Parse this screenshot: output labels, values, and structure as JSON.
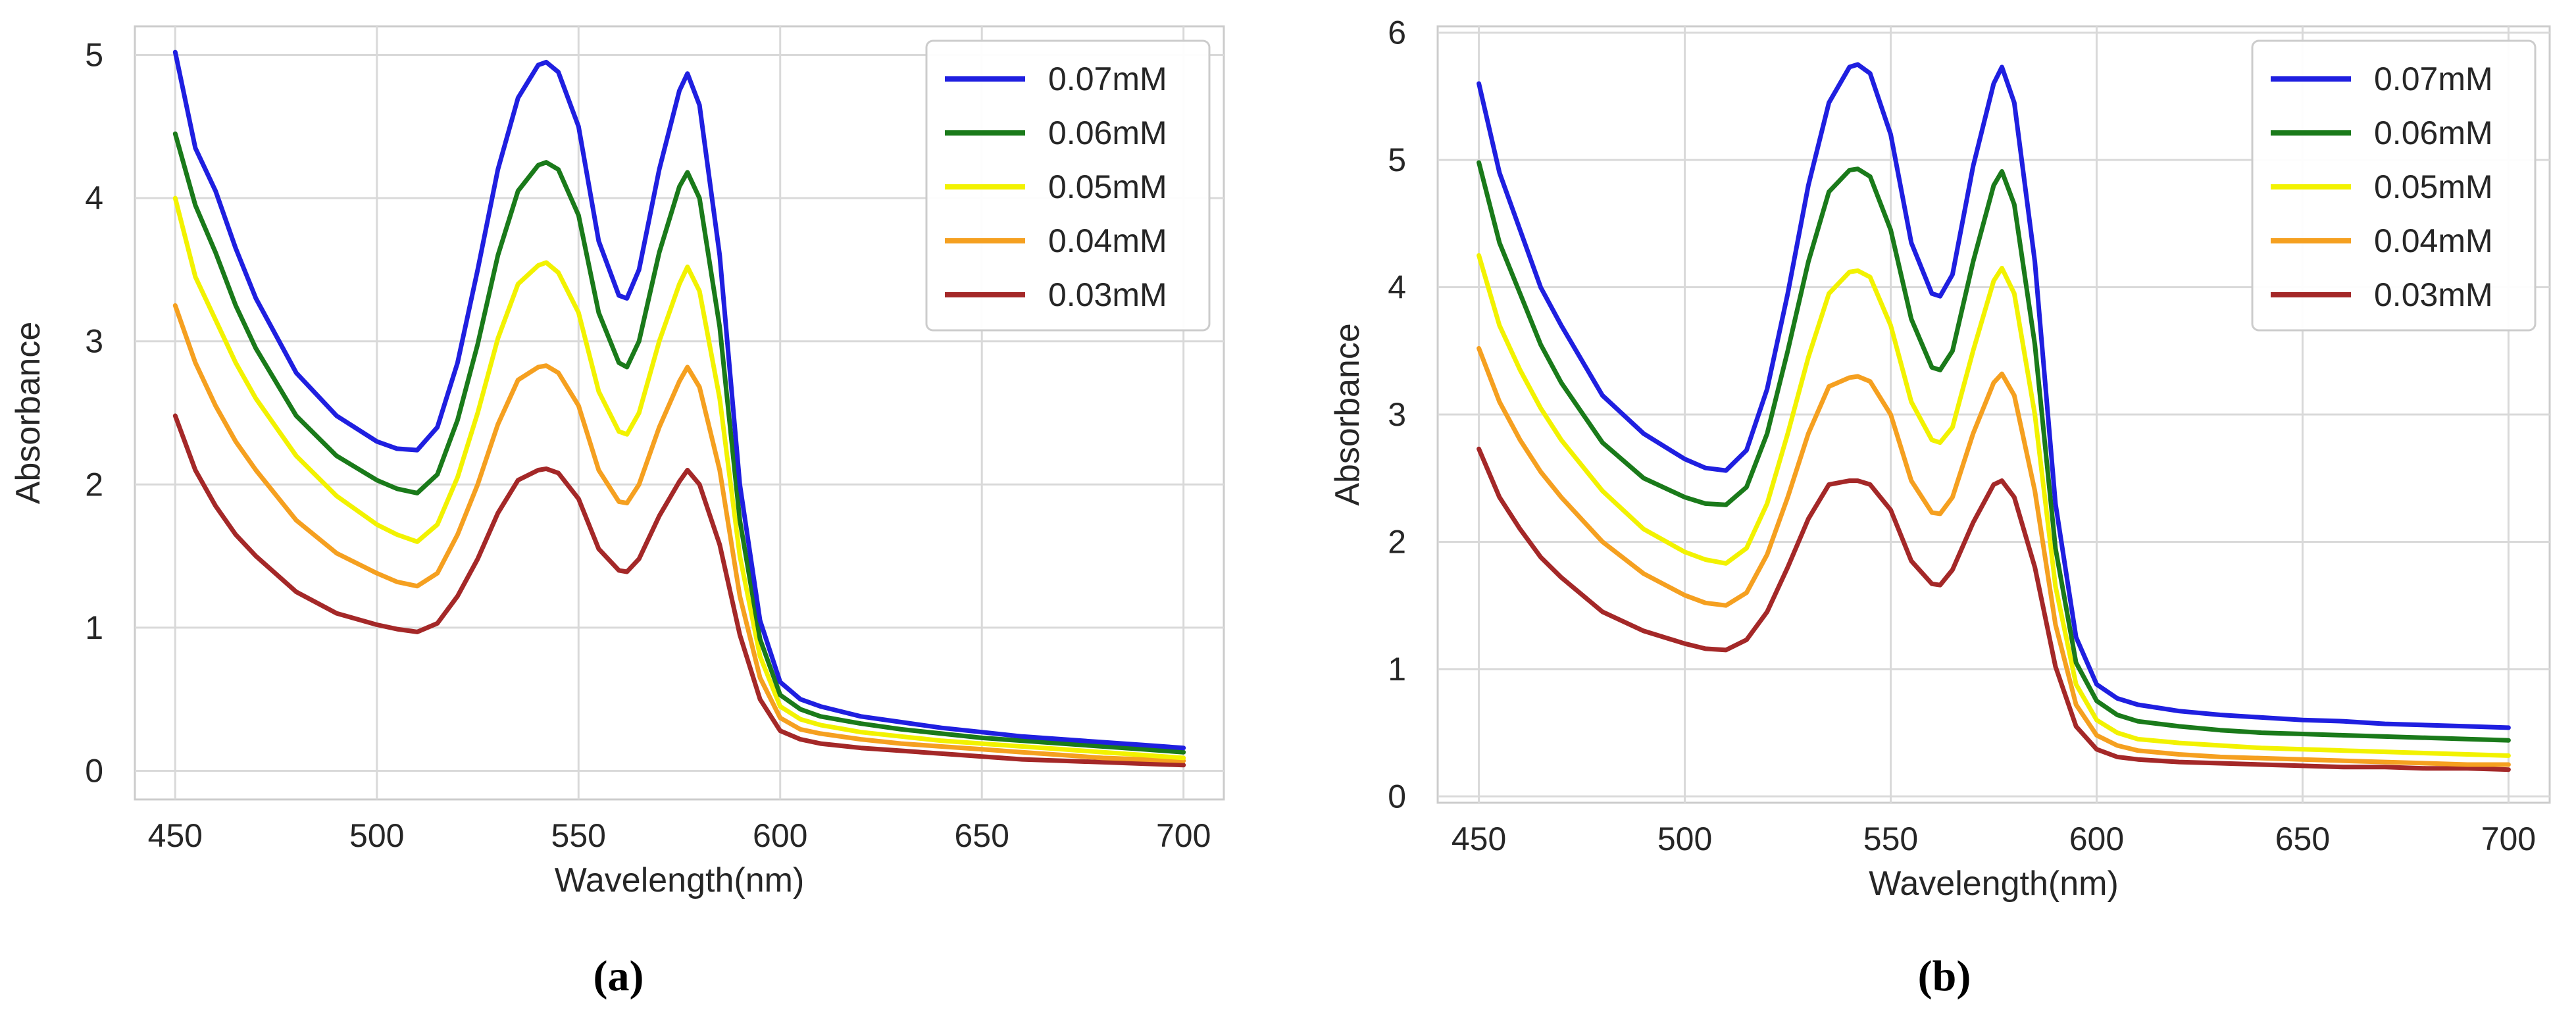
{
  "colors": {
    "0.07mM": "#1f1fe0",
    "0.06mM": "#1a7a1a",
    "0.05mM": "#f2f200",
    "0.04mM": "#f5a020",
    "0.03mM": "#a42828",
    "grid": "#d9d9d9",
    "frame": "#cccccc"
  },
  "chart_data": [
    {
      "type": "line",
      "caption": "(a)",
      "xlabel": "Wavelength(nm)",
      "ylabel": "Absorbance",
      "xlim": [
        440,
        710
      ],
      "ylim": [
        -0.2,
        5.2
      ],
      "xticks": [
        "450",
        "500",
        "550",
        "600",
        "650",
        "700"
      ],
      "yticks": [
        "0",
        "1",
        "2",
        "3",
        "4",
        "5"
      ],
      "grid": true,
      "legend": "top-right",
      "x": [
        450,
        455,
        460,
        465,
        470,
        480,
        490,
        500,
        505,
        510,
        515,
        520,
        525,
        530,
        535,
        540,
        542,
        545,
        550,
        555,
        560,
        562,
        565,
        570,
        575,
        577,
        580,
        585,
        590,
        595,
        600,
        605,
        610,
        620,
        630,
        640,
        650,
        660,
        670,
        680,
        690,
        700
      ],
      "series": [
        {
          "name": "0.07mM",
          "values": [
            5.02,
            4.35,
            4.05,
            3.65,
            3.3,
            2.78,
            2.48,
            2.3,
            2.25,
            2.24,
            2.4,
            2.85,
            3.5,
            4.2,
            4.7,
            4.93,
            4.95,
            4.88,
            4.5,
            3.7,
            3.32,
            3.3,
            3.5,
            4.2,
            4.75,
            4.87,
            4.65,
            3.6,
            2.0,
            1.05,
            0.62,
            0.5,
            0.45,
            0.38,
            0.34,
            0.3,
            0.27,
            0.24,
            0.22,
            0.2,
            0.18,
            0.16
          ]
        },
        {
          "name": "0.06mM",
          "values": [
            4.45,
            3.95,
            3.62,
            3.25,
            2.95,
            2.48,
            2.2,
            2.03,
            1.97,
            1.94,
            2.07,
            2.45,
            2.98,
            3.6,
            4.05,
            4.23,
            4.25,
            4.2,
            3.88,
            3.2,
            2.85,
            2.82,
            3.0,
            3.62,
            4.08,
            4.18,
            4.0,
            3.1,
            1.75,
            0.92,
            0.53,
            0.43,
            0.38,
            0.33,
            0.29,
            0.26,
            0.23,
            0.21,
            0.19,
            0.17,
            0.15,
            0.13
          ]
        },
        {
          "name": "0.05mM",
          "values": [
            4.0,
            3.45,
            3.15,
            2.85,
            2.6,
            2.2,
            1.92,
            1.72,
            1.65,
            1.6,
            1.72,
            2.05,
            2.5,
            3.02,
            3.4,
            3.53,
            3.55,
            3.48,
            3.2,
            2.65,
            2.37,
            2.35,
            2.5,
            3.0,
            3.4,
            3.52,
            3.35,
            2.6,
            1.5,
            0.8,
            0.45,
            0.36,
            0.32,
            0.27,
            0.24,
            0.21,
            0.19,
            0.17,
            0.15,
            0.13,
            0.11,
            0.09
          ]
        },
        {
          "name": "0.04mM",
          "values": [
            3.25,
            2.85,
            2.55,
            2.3,
            2.1,
            1.75,
            1.52,
            1.38,
            1.32,
            1.29,
            1.38,
            1.65,
            2.0,
            2.42,
            2.73,
            2.82,
            2.83,
            2.78,
            2.55,
            2.1,
            1.88,
            1.87,
            2.0,
            2.4,
            2.72,
            2.82,
            2.68,
            2.1,
            1.22,
            0.65,
            0.37,
            0.29,
            0.26,
            0.22,
            0.19,
            0.17,
            0.15,
            0.13,
            0.11,
            0.09,
            0.08,
            0.07
          ]
        },
        {
          "name": "0.03mM",
          "values": [
            2.48,
            2.1,
            1.85,
            1.65,
            1.5,
            1.25,
            1.1,
            1.02,
            0.99,
            0.97,
            1.03,
            1.22,
            1.48,
            1.8,
            2.03,
            2.1,
            2.11,
            2.08,
            1.9,
            1.55,
            1.4,
            1.39,
            1.48,
            1.78,
            2.02,
            2.1,
            2.0,
            1.58,
            0.95,
            0.5,
            0.28,
            0.22,
            0.19,
            0.16,
            0.14,
            0.12,
            0.1,
            0.08,
            0.07,
            0.06,
            0.05,
            0.04
          ]
        }
      ]
    },
    {
      "type": "line",
      "caption": "(b)",
      "xlabel": "Wavelength(nm)",
      "ylabel": "Absorbance",
      "xlim": [
        440,
        710
      ],
      "ylim": [
        -0.05,
        6.05
      ],
      "xticks": [
        "450",
        "500",
        "550",
        "600",
        "650",
        "700"
      ],
      "yticks": [
        "0",
        "1",
        "2",
        "3",
        "4",
        "5",
        "6"
      ],
      "grid": true,
      "legend": "top-right",
      "x": [
        450,
        455,
        460,
        465,
        470,
        480,
        490,
        500,
        505,
        510,
        515,
        520,
        525,
        530,
        535,
        540,
        542,
        545,
        550,
        555,
        560,
        562,
        565,
        570,
        575,
        577,
        580,
        585,
        590,
        595,
        600,
        605,
        610,
        620,
        630,
        640,
        650,
        660,
        670,
        680,
        690,
        700
      ],
      "series": [
        {
          "name": "0.07mM",
          "values": [
            5.6,
            4.9,
            4.45,
            4.0,
            3.7,
            3.15,
            2.85,
            2.65,
            2.58,
            2.56,
            2.72,
            3.2,
            3.95,
            4.8,
            5.45,
            5.73,
            5.75,
            5.68,
            5.2,
            4.35,
            3.95,
            3.93,
            4.1,
            4.95,
            5.6,
            5.73,
            5.45,
            4.2,
            2.3,
            1.25,
            0.88,
            0.77,
            0.72,
            0.67,
            0.64,
            0.62,
            0.6,
            0.59,
            0.57,
            0.56,
            0.55,
            0.54
          ]
        },
        {
          "name": "0.06mM",
          "values": [
            4.98,
            4.35,
            3.95,
            3.55,
            3.25,
            2.78,
            2.5,
            2.35,
            2.3,
            2.29,
            2.43,
            2.85,
            3.5,
            4.2,
            4.75,
            4.92,
            4.93,
            4.87,
            4.45,
            3.75,
            3.37,
            3.35,
            3.5,
            4.2,
            4.8,
            4.91,
            4.65,
            3.55,
            1.95,
            1.05,
            0.75,
            0.64,
            0.59,
            0.55,
            0.52,
            0.5,
            0.49,
            0.48,
            0.47,
            0.46,
            0.45,
            0.44
          ]
        },
        {
          "name": "0.05mM",
          "values": [
            4.25,
            3.7,
            3.35,
            3.05,
            2.8,
            2.4,
            2.1,
            1.92,
            1.86,
            1.83,
            1.95,
            2.3,
            2.85,
            3.45,
            3.95,
            4.12,
            4.13,
            4.08,
            3.7,
            3.1,
            2.8,
            2.78,
            2.9,
            3.5,
            4.05,
            4.15,
            3.95,
            3.0,
            1.65,
            0.88,
            0.6,
            0.5,
            0.45,
            0.42,
            0.4,
            0.38,
            0.37,
            0.36,
            0.35,
            0.34,
            0.33,
            0.32
          ]
        },
        {
          "name": "0.04mM",
          "values": [
            3.52,
            3.1,
            2.8,
            2.55,
            2.35,
            2.0,
            1.75,
            1.58,
            1.52,
            1.5,
            1.6,
            1.9,
            2.35,
            2.85,
            3.22,
            3.29,
            3.3,
            3.26,
            3.0,
            2.48,
            2.23,
            2.22,
            2.35,
            2.85,
            3.25,
            3.32,
            3.15,
            2.4,
            1.35,
            0.72,
            0.48,
            0.4,
            0.36,
            0.33,
            0.31,
            0.3,
            0.29,
            0.28,
            0.27,
            0.26,
            0.25,
            0.25
          ]
        },
        {
          "name": "0.03mM",
          "values": [
            2.73,
            2.35,
            2.1,
            1.88,
            1.72,
            1.45,
            1.3,
            1.2,
            1.16,
            1.15,
            1.23,
            1.45,
            1.8,
            2.18,
            2.45,
            2.48,
            2.48,
            2.45,
            2.25,
            1.85,
            1.67,
            1.66,
            1.78,
            2.15,
            2.45,
            2.48,
            2.35,
            1.8,
            1.02,
            0.55,
            0.37,
            0.31,
            0.29,
            0.27,
            0.26,
            0.25,
            0.24,
            0.23,
            0.23,
            0.22,
            0.22,
            0.21
          ]
        }
      ]
    }
  ]
}
